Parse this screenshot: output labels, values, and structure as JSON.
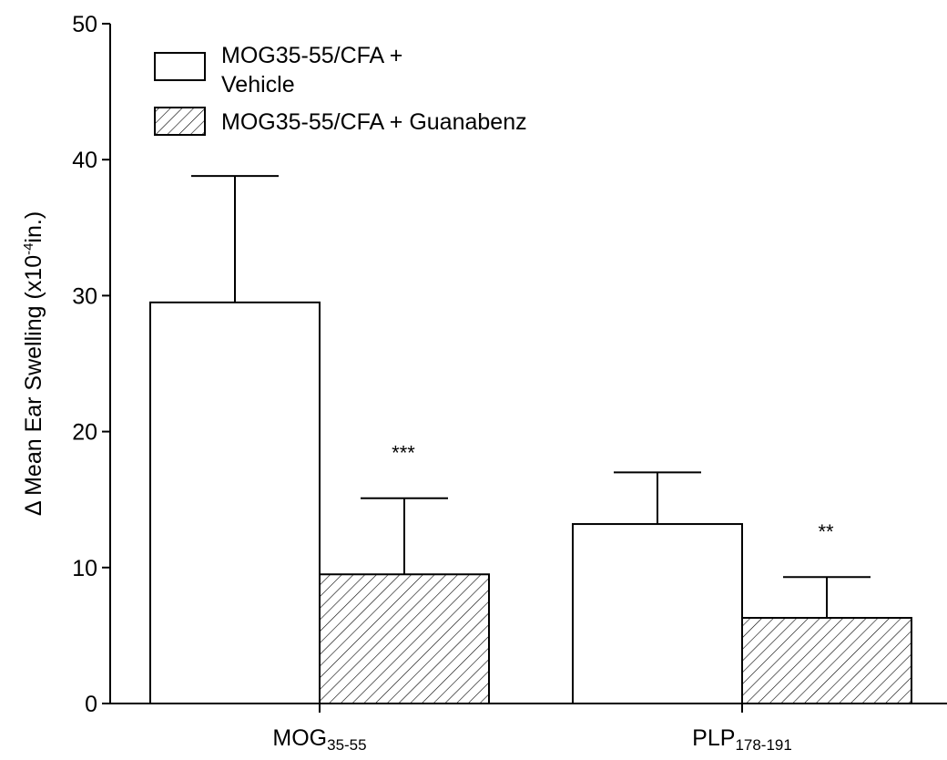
{
  "chart_data": {
    "type": "bar",
    "categories": [
      {
        "main": "MOG",
        "sub": "35-55"
      },
      {
        "main": "PLP",
        "sub": "178-191"
      }
    ],
    "series": [
      {
        "name": "MOG35-55/CFA + Vehicle",
        "legend_lines": [
          "MOG35-55/CFA +",
          "Vehicle"
        ],
        "fill": "white",
        "values": [
          29.5,
          13.2
        ],
        "errors": [
          9.3,
          3.8
        ],
        "significance": [
          "",
          ""
        ]
      },
      {
        "name": "MOG35-55/CFA + Guanabenz",
        "legend_lines": [
          "MOG35-55/CFA + Guanabenz"
        ],
        "fill": "hatch",
        "values": [
          9.5,
          6.3
        ],
        "errors": [
          5.6,
          3.0
        ],
        "significance": [
          "***",
          "**"
        ]
      }
    ],
    "ylabel": {
      "pre": "Δ Mean Ear Swelling (x10",
      "sup": "-4",
      "post": "in.)"
    },
    "xlabel": "",
    "title": "",
    "ylim": [
      0,
      50
    ],
    "yticks": [
      0,
      10,
      20,
      30,
      40,
      50
    ],
    "legend_position": "top-left",
    "grid": false,
    "colors": {
      "stroke": "#000000",
      "background": "#ffffff"
    }
  }
}
